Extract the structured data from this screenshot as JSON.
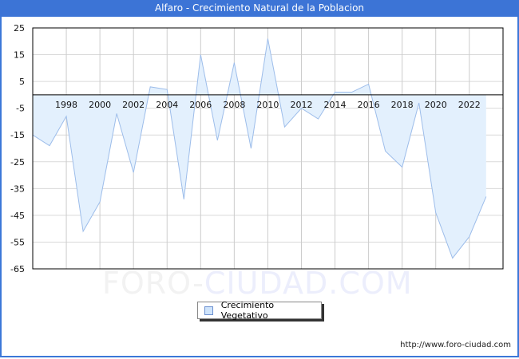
{
  "title": "Alfaro - Crecimiento Natural de la Poblacion",
  "watermark": {
    "part1": "FORO-",
    "part2": "CIUDAD.COM"
  },
  "legend": {
    "label": "Crecimiento Vegetativo",
    "swatch_color": "#cfe4fb"
  },
  "footer": {
    "url": "http://www.foro-ciudad.com"
  },
  "colors": {
    "title_bar": "#3c74d6",
    "area_fill": "#e3f0fd",
    "line": "#9dbdea",
    "grid": "#d9d9d9"
  },
  "chart_data": {
    "type": "area",
    "title": "Alfaro - Crecimiento Natural de la Poblacion",
    "xlabel": "",
    "ylabel": "",
    "x": [
      1996,
      1997,
      1998,
      1999,
      2000,
      2001,
      2002,
      2003,
      2004,
      2005,
      2006,
      2007,
      2008,
      2009,
      2010,
      2011,
      2012,
      2013,
      2014,
      2015,
      2016,
      2017,
      2018,
      2019,
      2020,
      2021,
      2022,
      2023
    ],
    "series": [
      {
        "name": "Crecimiento Vegetativo",
        "values": [
          -15,
          -19,
          -8,
          -51,
          -40,
          -7,
          -29,
          3,
          2,
          -39,
          15,
          -17,
          12,
          -20,
          21,
          -12,
          -5,
          -9,
          1,
          1,
          4,
          -21,
          -27,
          -3,
          -44,
          -61,
          -53,
          -38
        ]
      }
    ],
    "ylim": [
      -65,
      25
    ],
    "yticks": [
      25,
      15,
      5,
      -5,
      -15,
      -25,
      -35,
      -45,
      -55,
      -65
    ],
    "xticks": [
      1998,
      2000,
      2002,
      2004,
      2006,
      2008,
      2010,
      2012,
      2014,
      2016,
      2018,
      2020,
      2022
    ],
    "grid": true,
    "legend_position": "bottom-center"
  }
}
